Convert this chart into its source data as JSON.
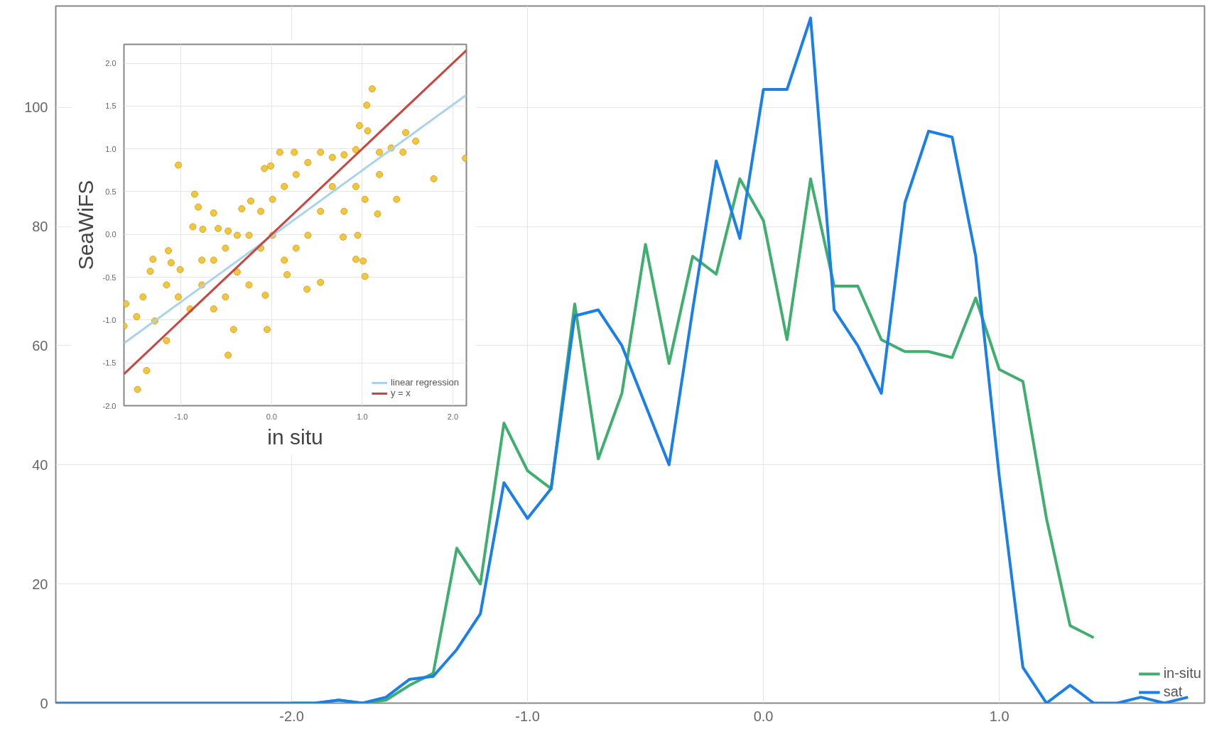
{
  "chart_data": [
    {
      "type": "line",
      "x": [
        -3.0,
        -2.9,
        -2.8,
        -2.7,
        -2.6,
        -2.5,
        -2.4,
        -2.3,
        -2.2,
        -2.1,
        -2.0,
        -1.9,
        -1.8,
        -1.7,
        -1.6,
        -1.5,
        -1.4,
        -1.3,
        -1.2,
        -1.1,
        -1.0,
        -0.9,
        -0.8,
        -0.7,
        -0.6,
        -0.5,
        -0.4,
        -0.3,
        -0.2,
        -0.1,
        0.0,
        0.1,
        0.2,
        0.3,
        0.4,
        0.5,
        0.6,
        0.7,
        0.8,
        0.9,
        1.0,
        1.1,
        1.2,
        1.3,
        1.4,
        1.5,
        1.6,
        1.7,
        1.8
      ],
      "xlim": [
        -3.0,
        1.87
      ],
      "xticks": [
        {
          "value": -2,
          "label": "-2.0"
        },
        {
          "value": -1,
          "label": "-1.0"
        },
        {
          "value": 0,
          "label": "0.0"
        },
        {
          "value": 1,
          "label": "1.0"
        }
      ],
      "ylim": [
        0,
        117
      ],
      "yticks": [
        0,
        20,
        40,
        60,
        80,
        100
      ],
      "grid": true,
      "legend": "bottom right",
      "series": [
        {
          "name": "in-situ",
          "color": "#3fae6e",
          "values": [
            null,
            null,
            null,
            null,
            null,
            null,
            null,
            null,
            null,
            null,
            0,
            0,
            0.5,
            0,
            0.5,
            3,
            5,
            26,
            20,
            47,
            39,
            36,
            67,
            41,
            52,
            77,
            57,
            75,
            72,
            88,
            81,
            61,
            88,
            70,
            70,
            61,
            59,
            59,
            58,
            68,
            56,
            54,
            31,
            13,
            11,
            null,
            null,
            null,
            null
          ]
        },
        {
          "name": "sat",
          "color": "#1a7fe6",
          "values": [
            0,
            0,
            0,
            0,
            0,
            0,
            0,
            0,
            0,
            0,
            0,
            0,
            0.5,
            0,
            1,
            4,
            4.5,
            9,
            15,
            37,
            31,
            36,
            65,
            66,
            60,
            50,
            40,
            66,
            91,
            78,
            103,
            103,
            115,
            66,
            60,
            52,
            84,
            96,
            95,
            75,
            38,
            6,
            0,
            3,
            0,
            0,
            1,
            0,
            1
          ]
        }
      ]
    },
    {
      "type": "scatter",
      "xlabel": "in situ",
      "ylabel": "SeaWiFS",
      "xlim": [
        -1.63,
        2.15
      ],
      "ylim": [
        -2.0,
        2.22
      ],
      "xticks": [
        {
          "value": -1,
          "label": "-1.0"
        },
        {
          "value": 0,
          "label": "0.0"
        },
        {
          "value": 1,
          "label": "1.0"
        },
        {
          "value": 2,
          "label": "2.0"
        }
      ],
      "yticks": [
        {
          "value": -2,
          "label": "-2.0"
        },
        {
          "value": -1.5,
          "label": "-1.5"
        },
        {
          "value": -1,
          "label": "-1.0"
        },
        {
          "value": -0.5,
          "label": "-0.5"
        },
        {
          "value": 0,
          "label": "0.0"
        },
        {
          "value": 0.5,
          "label": "0.5"
        },
        {
          "value": 1,
          "label": "1.0"
        },
        {
          "value": 1.5,
          "label": "1.5"
        },
        {
          "value": 2,
          "label": "2.0"
        }
      ],
      "grid": true,
      "legend": "bottom right",
      "series": [
        {
          "type": "scatter",
          "marker": "circle",
          "color": "#f3c63f",
          "x": [
            1.11,
            1.05,
            0.97,
            1.06,
            1.48,
            1.59,
            2.14,
            1.79,
            -1.03,
            0.09,
            0.25,
            -0.85,
            -0.81,
            -0.64,
            -1.14,
            -1.31,
            -1.34,
            -1.61,
            -1.63,
            -1.48,
            -1.38,
            -0.48,
            -0.42,
            -0.05,
            0.39,
            0.54,
            0.17,
            1.03,
            0.93,
            1.01,
            1.17,
            1.03,
            1.38,
            0.79,
            0.95,
            -0.07,
            -0.48,
            -0.59,
            -0.87,
            -0.76,
            -0.33,
            -0.23,
            -0.08,
            -0.01,
            -1.49,
            -1.01,
            -1.11,
            -1.16,
            -1.29,
            -0.9,
            -0.77,
            -0.64,
            -0.51,
            -0.38,
            -0.25,
            -0.51,
            -0.12,
            0.01,
            0.14,
            0.27,
            0.4,
            0.54,
            0.67,
            0.8,
            0.93,
            1.19,
            1.32,
            1.45,
            0.67,
            0.54,
            0.4,
            0.27,
            0.14,
            0.8,
            0.93,
            1.19,
            -0.12,
            0.01,
            -0.25,
            -0.77,
            -1.03,
            -1.42,
            -1.16,
            -0.64,
            -0.38
          ],
          "values": [
            1.7,
            1.51,
            1.27,
            1.21,
            1.19,
            1.09,
            0.89,
            0.65,
            0.81,
            0.96,
            0.96,
            0.47,
            0.32,
            0.25,
            -0.19,
            -0.29,
            -0.43,
            -0.81,
            -1.07,
            -1.81,
            -1.59,
            -1.41,
            -1.11,
            -1.11,
            -0.64,
            -0.56,
            -0.47,
            -0.49,
            -0.29,
            -0.31,
            0.24,
            0.41,
            0.41,
            -0.03,
            -0.01,
            -0.71,
            0.04,
            0.07,
            0.09,
            0.06,
            0.3,
            0.39,
            0.77,
            0.8,
            -0.96,
            -0.41,
            -0.33,
            -1.24,
            -1.01,
            -0.87,
            -0.59,
            -0.3,
            -0.16,
            -0.01,
            -0.59,
            -0.73,
            0.27,
            0.41,
            0.56,
            0.7,
            0.84,
            0.96,
            0.9,
            0.93,
            0.99,
            0.96,
            1.01,
            0.96,
            0.56,
            0.27,
            -0.01,
            -0.16,
            -0.3,
            0.27,
            0.56,
            0.7,
            -0.16,
            -0.01,
            -0.01,
            -0.3,
            -0.73,
            -0.73,
            -0.59,
            -0.87,
            -0.44
          ]
        },
        {
          "type": "line",
          "name": "linear regression",
          "color": "#a9d3ea",
          "x": [
            -1.63,
            2.15
          ],
          "values": [
            -1.27,
            1.63
          ]
        },
        {
          "type": "line",
          "name": "y = x",
          "color": "#c9453f",
          "x": [
            -1.63,
            2.15
          ],
          "values": [
            -1.63,
            2.15
          ]
        }
      ]
    }
  ]
}
